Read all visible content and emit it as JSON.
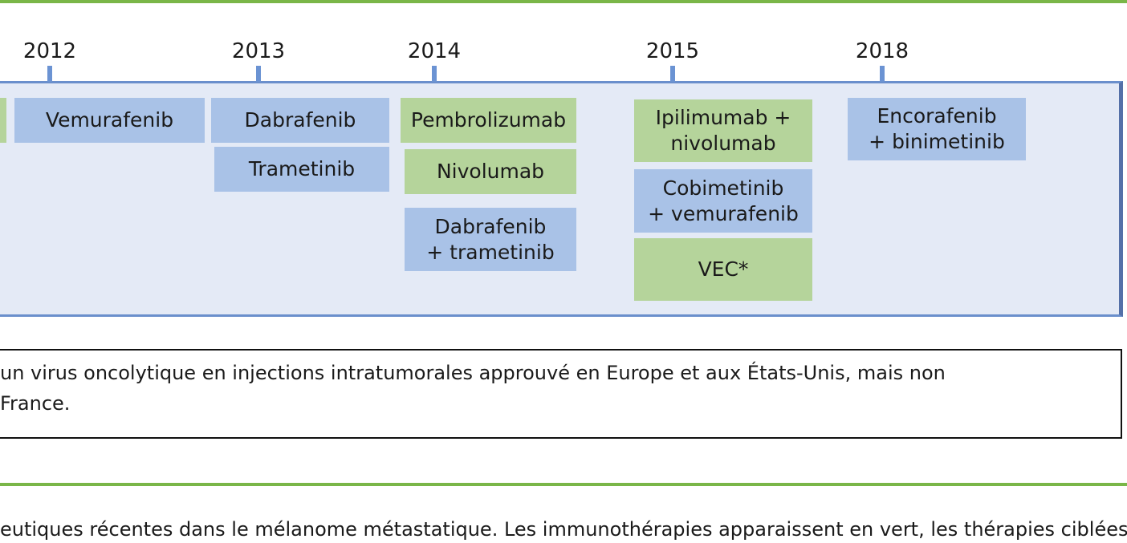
{
  "timeline": [
    {
      "year": "2012",
      "drugs": [
        {
          "lines": [
            "Vemurafenib"
          ]
        }
      ]
    },
    {
      "year": "2013",
      "drugs": [
        {
          "lines": [
            "Dabrafenib"
          ]
        },
        {
          "lines": [
            "Trametinib"
          ]
        }
      ]
    },
    {
      "year": "2014",
      "drugs": [
        {
          "lines": [
            "Pembrolizumab"
          ]
        },
        {
          "lines": [
            "Nivolumab"
          ]
        },
        {
          "lines": [
            "Dabrafenib",
            "+ trametinib"
          ]
        }
      ]
    },
    {
      "year": "2015",
      "drugs": [
        {
          "lines": [
            "Ipilimumab +",
            "nivolumab"
          ]
        },
        {
          "lines": [
            "Cobimetinib",
            "+ vemurafenib"
          ]
        },
        {
          "lines": [
            "VEC*"
          ]
        }
      ]
    },
    {
      "year": "2018",
      "drugs": [
        {
          "lines": [
            "Encorafenib",
            "+ binimetinib"
          ]
        }
      ]
    }
  ],
  "note": {
    "lines": [
      "un virus oncolytique en injections intratumorales approuvé en Europe et aux États-Unis, mais non",
      "France."
    ]
  },
  "caption": "eutiques récentes dans le mélanome métastatique. Les immunothérapies apparaissent en vert, les thérapies ciblées e"
}
